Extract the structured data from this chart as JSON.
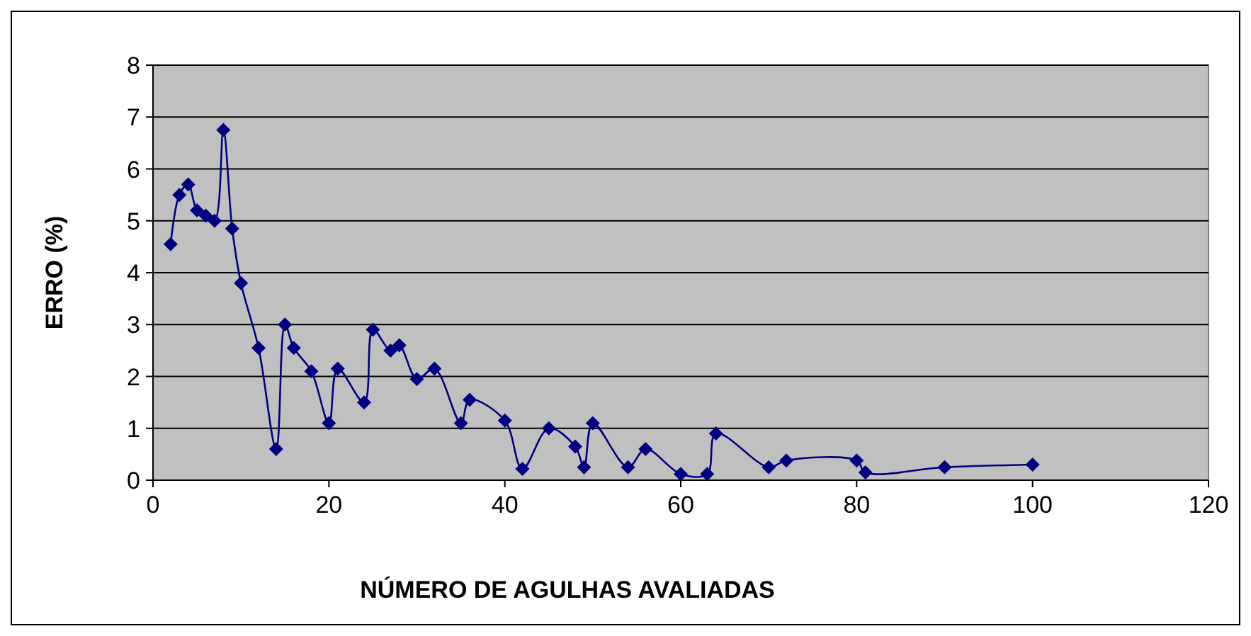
{
  "chart_data": {
    "type": "line",
    "xlabel": "NÚMERO DE AGULHAS AVALIADAS",
    "ylabel": "ERRO (%)",
    "x": [
      2,
      3,
      4,
      5,
      6,
      7,
      8,
      9,
      10,
      12,
      14,
      15,
      16,
      18,
      20,
      21,
      24,
      25,
      27,
      28,
      30,
      32,
      35,
      36,
      40,
      42,
      45,
      48,
      49,
      50,
      54,
      56,
      60,
      63,
      64,
      70,
      72,
      80,
      81,
      90,
      100
    ],
    "series": [
      {
        "color": "#000080",
        "values": [
          4.55,
          5.5,
          5.7,
          5.2,
          5.1,
          5.0,
          6.75,
          4.85,
          3.8,
          2.55,
          0.6,
          3.0,
          2.55,
          2.1,
          1.1,
          2.15,
          1.5,
          2.9,
          2.5,
          2.6,
          1.95,
          2.15,
          1.1,
          1.55,
          1.15,
          0.22,
          1.0,
          0.65,
          0.25,
          1.1,
          0.25,
          0.6,
          0.12,
          0.12,
          0.9,
          0.25,
          0.38,
          0.38,
          0.15,
          0.25,
          0.3
        ]
      }
    ],
    "xlim": [
      0,
      120
    ],
    "xticks": [
      0,
      20,
      40,
      60,
      80,
      100,
      120
    ],
    "ylim": [
      0,
      8
    ],
    "yticks": [
      0,
      1,
      2,
      3,
      4,
      5,
      6,
      7,
      8
    ],
    "grid": "y",
    "marker": "diamond",
    "line_style": "solid"
  }
}
